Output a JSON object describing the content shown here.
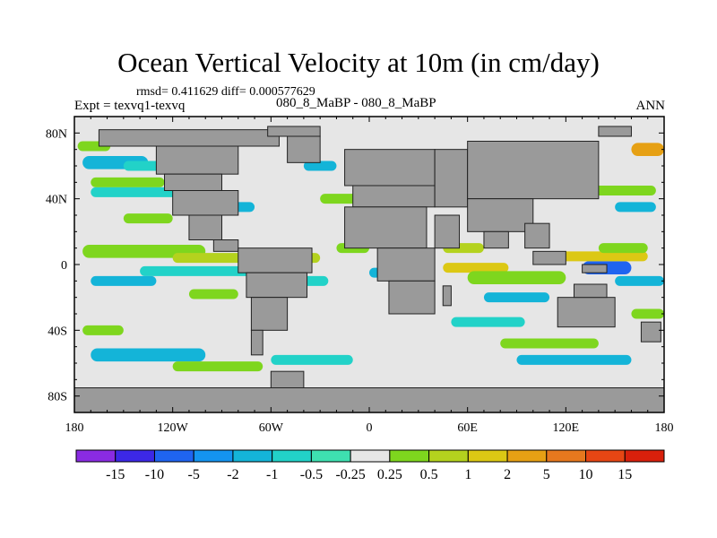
{
  "chart_data": {
    "type": "heatmap",
    "title": "Ocean Vertical Velocity at 10m (in cm/day)",
    "stats_line": "rmsd= 0.411629 diff= 0.000577629",
    "experiment_line": "Expt = texvq1-texvq",
    "experiment_name": "080_8_MaBP - 080_8_MaBP",
    "season": "ANN",
    "x_ticks": [
      "180",
      "120W",
      "60W",
      "0",
      "60E",
      "120E",
      "180"
    ],
    "x_tick_lon": [
      -180,
      -120,
      -60,
      0,
      60,
      120,
      180
    ],
    "y_ticks": [
      "80N",
      "40N",
      "0",
      "40S",
      "80S"
    ],
    "y_tick_lat": [
      80,
      40,
      0,
      -40,
      -80
    ],
    "xlim": [
      -180,
      180
    ],
    "ylim": [
      -90,
      90
    ],
    "colorbar_labels": [
      "-15",
      "-10",
      "-5",
      "-2",
      "-1",
      "-0.5",
      "-0.25",
      "0.25",
      "0.5",
      "1",
      "2",
      "5",
      "10",
      "15"
    ],
    "colorbar_colors": [
      "#8a2be2",
      "#3c28e6",
      "#1f64f0",
      "#1494f0",
      "#14b4d8",
      "#22d2c8",
      "#3ee0b0",
      "#e6e6e6",
      "#7ed61e",
      "#b4d21e",
      "#dcc814",
      "#e6a014",
      "#e6781e",
      "#e64614",
      "#d8200c"
    ],
    "land_color": "#9a9a9a",
    "fill_color": "#e6e6e6",
    "land_label": "land"
  }
}
